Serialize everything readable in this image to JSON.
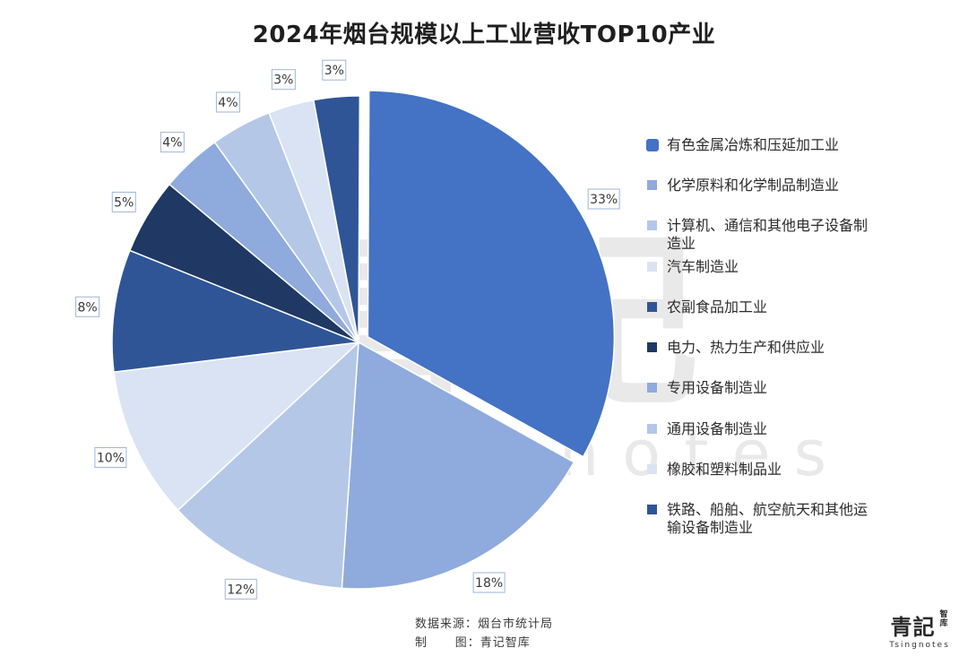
{
  "title": "2024年烟台规模以上工业营收TOP10产业",
  "chart_data": {
    "type": "pie",
    "title": "2024年烟台规模以上工业营收TOP10产业",
    "unit": "%",
    "legend_position": "right",
    "slices": [
      {
        "label": "有色金属冶炼和压延加工业",
        "value": 33,
        "display": "33%",
        "color": "#4472C4"
      },
      {
        "label": "化学原料和化学制品制造业",
        "value": 18,
        "display": "18%",
        "color": "#8FAADC"
      },
      {
        "label": "计算机、通信和其他电子设备制造业",
        "value": 12,
        "display": "12%",
        "color": "#B4C7E7"
      },
      {
        "label": "汽车制造业",
        "value": 10,
        "display": "10%",
        "color": "#DAE3F3"
      },
      {
        "label": "农副食品加工业",
        "value": 8,
        "display": "8%",
        "color": "#2F5597"
      },
      {
        "label": "电力、热力生产和供应业",
        "value": 5,
        "display": "5%",
        "color": "#1F3864"
      },
      {
        "label": "专用设备制造业",
        "value": 4,
        "display": "4%",
        "color": "#8FAADC"
      },
      {
        "label": "通用设备制造业",
        "value": 4,
        "display": "4%",
        "color": "#B4C7E7"
      },
      {
        "label": "橡胶和塑料制品业",
        "value": 3,
        "display": "3%",
        "color": "#DAE3F3"
      },
      {
        "label": "铁路、船舶、航空航天和其他运输设备制造业",
        "value": 3,
        "display": "3%",
        "color": "#2F5597"
      }
    ],
    "legend": [
      {
        "line1": "有色金属冶炼和压延加工业",
        "line2": ""
      },
      {
        "line1": "化学原料和化学制品制造业",
        "line2": ""
      },
      {
        "line1": "计算机、通信和其他电子设备制",
        "line2": "造业"
      },
      {
        "line1": "汽车制造业",
        "line2": ""
      },
      {
        "line1": "农副食品加工业",
        "line2": ""
      },
      {
        "line1": "电力、热力生产和供应业",
        "line2": ""
      },
      {
        "line1": "专用设备制造业",
        "line2": ""
      },
      {
        "line1": "通用设备制造业",
        "line2": ""
      },
      {
        "line1": "橡胶和塑料制品业",
        "line2": ""
      },
      {
        "line1": "铁路、船舶、航空航天和其他运",
        "line2": "输设备制造业"
      }
    ]
  },
  "footer": {
    "source_line": "数据来源：烟台市统计局",
    "maker_line": "制      图：青记智库"
  },
  "brand": {
    "name": "青記",
    "sub_cn": "智库",
    "sub_en": "Tsingnotes"
  },
  "watermark": {
    "cn": "青記智库",
    "en": "Tsingnotes"
  }
}
